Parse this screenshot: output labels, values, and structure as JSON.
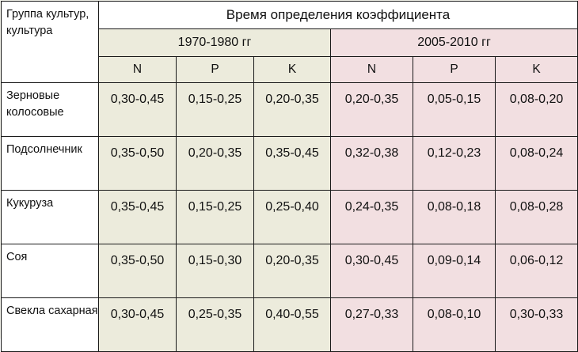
{
  "header": {
    "group_label": "Группа культур, культура",
    "main_title": "Время определения коэффициента",
    "period_1": "1970-1980 гг",
    "period_2": "2005-2010 гг",
    "nutrients": [
      "N",
      "P",
      "K",
      "N",
      "P",
      "K"
    ]
  },
  "rows": [
    {
      "crop": "Зерновые колосовые",
      "values": [
        "0,30-0,45",
        "0,15-0,25",
        "0,20-0,35",
        "0,20-0,35",
        "0,05-0,15",
        "0,08-0,20"
      ]
    },
    {
      "crop": "Подсолнечник",
      "values": [
        "0,35-0,50",
        "0,20-0,35",
        "0,35-0,45",
        "0,32-0,38",
        "0,12-0,23",
        "0,08-0,24"
      ]
    },
    {
      "crop": "Кукуруза",
      "values": [
        "0,35-0,45",
        "0,15-0,25",
        "0,25-0,40",
        "0,24-0,35",
        "0,08-0,18",
        "0,08-0,28"
      ]
    },
    {
      "crop": "Соя",
      "values": [
        "0,35-0,50",
        "0,15-0,30",
        "0,20-0,35",
        "0,30-0,45",
        "0,09-0,14",
        "0,06-0,12"
      ]
    },
    {
      "crop": "Свекла сахарная",
      "values": [
        "0,30-0,45",
        "0,25-0,35",
        "0,40-0,55",
        "0,27-0,33",
        "0,08-0,10",
        "0,30-0,33"
      ]
    }
  ],
  "colors": {
    "period_1_fill": "#ecebdc",
    "period_2_fill": "#f2dfe1",
    "header_fill": "#ffffff",
    "border": "#1a1a1a"
  }
}
